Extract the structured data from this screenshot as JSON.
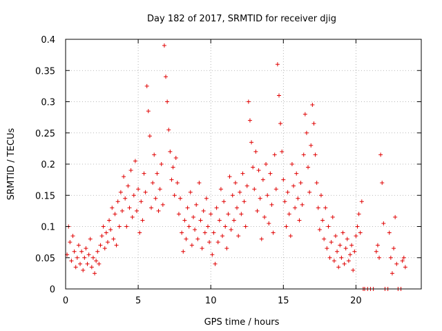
{
  "chart_data": {
    "type": "scatter",
    "title": "Day 182 of 2017, SRMTID for receiver djig",
    "xlabel": "GPS time / hours",
    "ylabel": "SRMTID / TECUs",
    "xlim": [
      0,
      24.5
    ],
    "ylim": [
      0,
      0.4
    ],
    "xticks": [
      0,
      5,
      10,
      15,
      20
    ],
    "xtick_labels": [
      "0",
      "5",
      "10",
      "15",
      "20"
    ],
    "yticks": [
      0,
      0.05,
      0.1,
      0.15,
      0.2,
      0.25,
      0.3,
      0.35,
      0.4
    ],
    "ytick_labels": [
      "0",
      "0.05",
      "0.1",
      "0.15",
      "0.2",
      "0.25",
      "0.3",
      "0.35",
      "0.4"
    ],
    "grid": true,
    "marker": "plus",
    "color": "#e00000",
    "series": [
      {
        "name": "SRMTID",
        "points": [
          [
            0.1,
            0.055
          ],
          [
            0.2,
            0.1
          ],
          [
            0.3,
            0.075
          ],
          [
            0.4,
            0.045
          ],
          [
            0.5,
            0.085
          ],
          [
            0.6,
            0.06
          ],
          [
            0.7,
            0.035
          ],
          [
            0.8,
            0.05
          ],
          [
            0.9,
            0.07
          ],
          [
            1.0,
            0.04
          ],
          [
            1.1,
            0.06
          ],
          [
            1.2,
            0.03
          ],
          [
            1.3,
            0.05
          ],
          [
            1.4,
            0.065
          ],
          [
            1.5,
            0.04
          ],
          [
            1.6,
            0.055
          ],
          [
            1.7,
            0.08
          ],
          [
            1.8,
            0.035
          ],
          [
            1.9,
            0.05
          ],
          [
            2.0,
            0.025
          ],
          [
            2.1,
            0.045
          ],
          [
            2.2,
            0.06
          ],
          [
            2.3,
            0.04
          ],
          [
            2.4,
            0.07
          ],
          [
            2.5,
            0.085
          ],
          [
            2.6,
            0.1
          ],
          [
            2.7,
            0.065
          ],
          [
            2.8,
            0.09
          ],
          [
            2.9,
            0.075
          ],
          [
            3.0,
            0.11
          ],
          [
            3.1,
            0.095
          ],
          [
            3.2,
            0.13
          ],
          [
            3.3,
            0.08
          ],
          [
            3.4,
            0.12
          ],
          [
            3.5,
            0.07
          ],
          [
            3.6,
            0.14
          ],
          [
            3.7,
            0.1
          ],
          [
            3.8,
            0.155
          ],
          [
            3.9,
            0.125
          ],
          [
            4.0,
            0.18
          ],
          [
            4.1,
            0.145
          ],
          [
            4.2,
            0.1
          ],
          [
            4.3,
            0.165
          ],
          [
            4.4,
            0.13
          ],
          [
            4.5,
            0.19
          ],
          [
            4.6,
            0.115
          ],
          [
            4.7,
            0.15
          ],
          [
            4.8,
            0.205
          ],
          [
            4.9,
            0.125
          ],
          [
            5.0,
            0.16
          ],
          [
            5.1,
            0.09
          ],
          [
            5.2,
            0.14
          ],
          [
            5.3,
            0.11
          ],
          [
            5.4,
            0.185
          ],
          [
            5.5,
            0.155
          ],
          [
            5.6,
            0.325
          ],
          [
            5.7,
            0.285
          ],
          [
            5.8,
            0.245
          ],
          [
            5.9,
            0.13
          ],
          [
            6.0,
            0.17
          ],
          [
            6.1,
            0.215
          ],
          [
            6.2,
            0.145
          ],
          [
            6.3,
            0.185
          ],
          [
            6.4,
            0.125
          ],
          [
            6.5,
            0.16
          ],
          [
            6.6,
            0.2
          ],
          [
            6.7,
            0.135
          ],
          [
            6.8,
            0.39
          ],
          [
            6.9,
            0.34
          ],
          [
            7.0,
            0.3
          ],
          [
            7.1,
            0.255
          ],
          [
            7.2,
            0.22
          ],
          [
            7.3,
            0.175
          ],
          [
            7.4,
            0.195
          ],
          [
            7.5,
            0.15
          ],
          [
            7.6,
            0.21
          ],
          [
            7.7,
            0.17
          ],
          [
            7.8,
            0.12
          ],
          [
            7.9,
            0.145
          ],
          [
            8.0,
            0.09
          ],
          [
            8.1,
            0.06
          ],
          [
            8.2,
            0.11
          ],
          [
            8.3,
            0.08
          ],
          [
            8.4,
            0.13
          ],
          [
            8.5,
            0.1
          ],
          [
            8.6,
            0.155
          ],
          [
            8.7,
            0.07
          ],
          [
            8.8,
            0.115
          ],
          [
            8.9,
            0.095
          ],
          [
            9.0,
            0.135
          ],
          [
            9.1,
            0.08
          ],
          [
            9.2,
            0.17
          ],
          [
            9.3,
            0.11
          ],
          [
            9.4,
            0.065
          ],
          [
            9.5,
            0.125
          ],
          [
            9.6,
            0.09
          ],
          [
            9.7,
            0.145
          ],
          [
            9.8,
            0.1
          ],
          [
            9.9,
            0.075
          ],
          [
            10.0,
            0.12
          ],
          [
            10.1,
            0.055
          ],
          [
            10.2,
            0.09
          ],
          [
            10.3,
            0.04
          ],
          [
            10.4,
            0.13
          ],
          [
            10.5,
            0.075
          ],
          [
            10.6,
            0.11
          ],
          [
            10.7,
            0.16
          ],
          [
            10.8,
            0.085
          ],
          [
            10.9,
            0.14
          ],
          [
            11.0,
            0.1
          ],
          [
            11.1,
            0.065
          ],
          [
            11.2,
            0.12
          ],
          [
            11.3,
            0.18
          ],
          [
            11.4,
            0.095
          ],
          [
            11.5,
            0.15
          ],
          [
            11.6,
            0.11
          ],
          [
            11.7,
            0.17
          ],
          [
            11.8,
            0.13
          ],
          [
            11.9,
            0.085
          ],
          [
            12.0,
            0.155
          ],
          [
            12.1,
            0.12
          ],
          [
            12.2,
            0.185
          ],
          [
            12.3,
            0.14
          ],
          [
            12.4,
            0.1
          ],
          [
            12.5,
            0.165
          ],
          [
            12.6,
            0.3
          ],
          [
            12.7,
            0.27
          ],
          [
            12.8,
            0.235
          ],
          [
            12.9,
            0.195
          ],
          [
            13.0,
            0.16
          ],
          [
            13.1,
            0.22
          ],
          [
            13.2,
            0.125
          ],
          [
            13.3,
            0.19
          ],
          [
            13.4,
            0.145
          ],
          [
            13.5,
            0.08
          ],
          [
            13.6,
            0.175
          ],
          [
            13.7,
            0.115
          ],
          [
            13.8,
            0.2
          ],
          [
            13.9,
            0.15
          ],
          [
            14.0,
            0.105
          ],
          [
            14.1,
            0.185
          ],
          [
            14.2,
            0.135
          ],
          [
            14.3,
            0.09
          ],
          [
            14.4,
            0.215
          ],
          [
            14.5,
            0.16
          ],
          [
            14.6,
            0.36
          ],
          [
            14.7,
            0.31
          ],
          [
            14.8,
            0.265
          ],
          [
            14.9,
            0.22
          ],
          [
            15.0,
            0.175
          ],
          [
            15.1,
            0.14
          ],
          [
            15.2,
            0.1
          ],
          [
            15.3,
            0.155
          ],
          [
            15.4,
            0.12
          ],
          [
            15.5,
            0.085
          ],
          [
            15.6,
            0.2
          ],
          [
            15.7,
            0.165
          ],
          [
            15.8,
            0.13
          ],
          [
            15.9,
            0.185
          ],
          [
            16.0,
            0.145
          ],
          [
            16.1,
            0.11
          ],
          [
            16.2,
            0.17
          ],
          [
            16.3,
            0.135
          ],
          [
            16.4,
            0.215
          ],
          [
            16.5,
            0.28
          ],
          [
            16.6,
            0.25
          ],
          [
            16.7,
            0.195
          ],
          [
            16.8,
            0.155
          ],
          [
            16.9,
            0.23
          ],
          [
            17.0,
            0.295
          ],
          [
            17.1,
            0.265
          ],
          [
            17.2,
            0.215
          ],
          [
            17.3,
            0.17
          ],
          [
            17.4,
            0.13
          ],
          [
            17.5,
            0.095
          ],
          [
            17.6,
            0.15
          ],
          [
            17.7,
            0.11
          ],
          [
            17.8,
            0.08
          ],
          [
            17.9,
            0.13
          ],
          [
            18.0,
            0.065
          ],
          [
            18.1,
            0.1
          ],
          [
            18.2,
            0.05
          ],
          [
            18.3,
            0.075
          ],
          [
            18.4,
            0.115
          ],
          [
            18.5,
            0.045
          ],
          [
            18.6,
            0.085
          ],
          [
            18.7,
            0.06
          ],
          [
            18.8,
            0.035
          ],
          [
            18.9,
            0.07
          ],
          [
            19.0,
            0.05
          ],
          [
            19.1,
            0.09
          ],
          [
            19.2,
            0.04
          ],
          [
            19.3,
            0.065
          ],
          [
            19.4,
            0.08
          ],
          [
            19.5,
            0.045
          ],
          [
            19.6,
            0.055
          ],
          [
            19.7,
            0.07
          ],
          [
            19.8,
            0.03
          ],
          [
            19.9,
            0.06
          ],
          [
            20.0,
            0.085
          ],
          [
            20.1,
            0.1
          ],
          [
            20.2,
            0.12
          ],
          [
            20.3,
            0.09
          ],
          [
            20.4,
            0.14
          ],
          [
            20.5,
            0.0
          ],
          [
            20.6,
            0.0
          ],
          [
            20.8,
            0.0
          ],
          [
            21.0,
            0.0
          ],
          [
            21.2,
            0.0
          ],
          [
            21.4,
            0.06
          ],
          [
            21.5,
            0.07
          ],
          [
            21.6,
            0.05
          ],
          [
            21.7,
            0.215
          ],
          [
            21.8,
            0.17
          ],
          [
            21.9,
            0.105
          ],
          [
            22.0,
            0.0
          ],
          [
            22.2,
            0.0
          ],
          [
            22.3,
            0.09
          ],
          [
            22.4,
            0.05
          ],
          [
            22.5,
            0.025
          ],
          [
            22.6,
            0.065
          ],
          [
            22.7,
            0.115
          ],
          [
            22.8,
            0.04
          ],
          [
            22.9,
            0.0
          ],
          [
            23.1,
            0.0
          ],
          [
            23.2,
            0.045
          ],
          [
            23.3,
            0.05
          ],
          [
            23.4,
            0.035
          ]
        ]
      }
    ]
  }
}
